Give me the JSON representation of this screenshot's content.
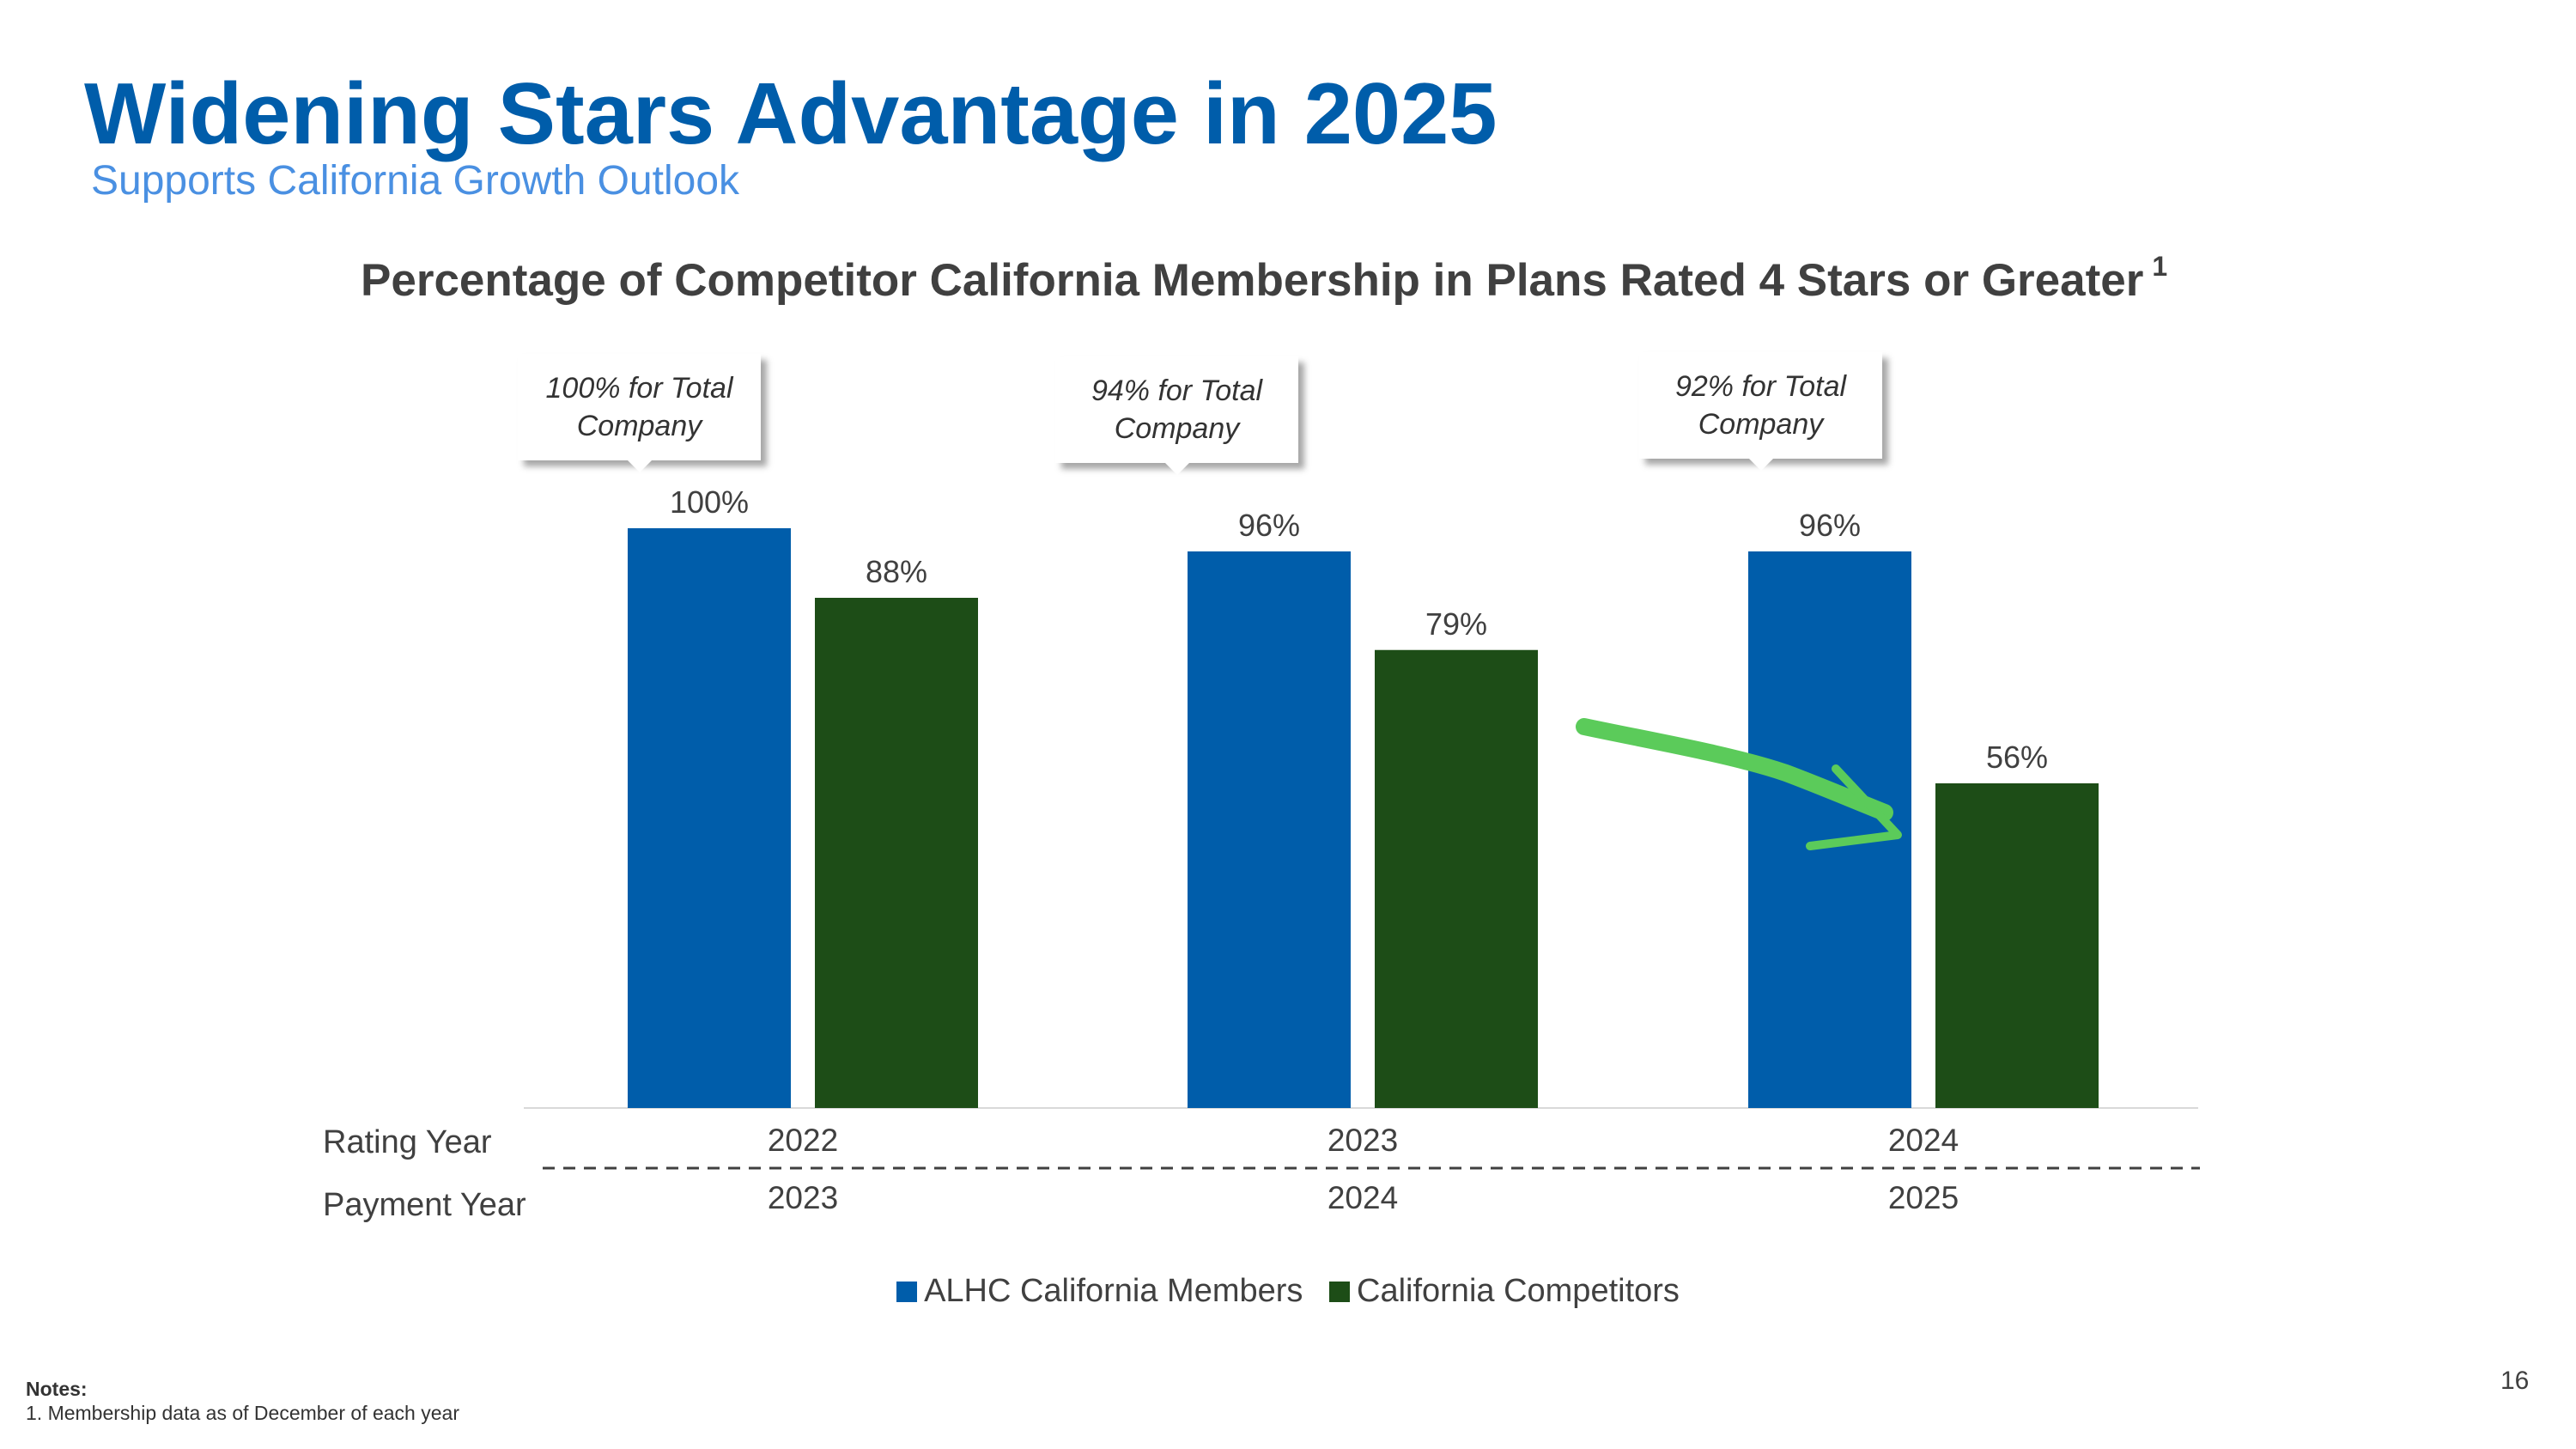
{
  "slide": {
    "title": "Widening Stars Advantage in 2025",
    "subtitle": "Supports California Growth Outlook",
    "page_number": "16"
  },
  "notes": {
    "heading": "Notes:",
    "items": [
      "1. Membership data as of December of each year"
    ]
  },
  "colors": {
    "title": "#005DAA",
    "subtitle": "#4A90E2",
    "alhc": "#005DAA",
    "competitors": "#1D4D17",
    "arrow": "#5BCB5A"
  },
  "chart_data": {
    "type": "bar",
    "title": "Percentage of Competitor California Membership in Plans Rated 4 Stars or Greater",
    "title_footnote": "1",
    "row_labels": {
      "rating_year": "Rating Year",
      "payment_year": "Payment Year"
    },
    "categories": [
      "2022",
      "2023",
      "2024"
    ],
    "payment_years": [
      "2023",
      "2024",
      "2025"
    ],
    "series": [
      {
        "name": "ALHC California Members",
        "values": [
          100,
          96,
          96
        ],
        "labels": [
          "100%",
          "96%",
          "96%"
        ],
        "color": "#005DAA"
      },
      {
        "name": "California Competitors",
        "values": [
          88,
          79,
          56
        ],
        "labels": [
          "88%",
          "79%",
          "56%"
        ],
        "color": "#1D4D17"
      }
    ],
    "callouts": [
      "100% for Total Company",
      "94% for Total Company",
      "92% for Total Company"
    ],
    "annotation": "downward-trend-arrow",
    "ylim": [
      0,
      100
    ],
    "legend": "bottom-center",
    "grid": false
  }
}
